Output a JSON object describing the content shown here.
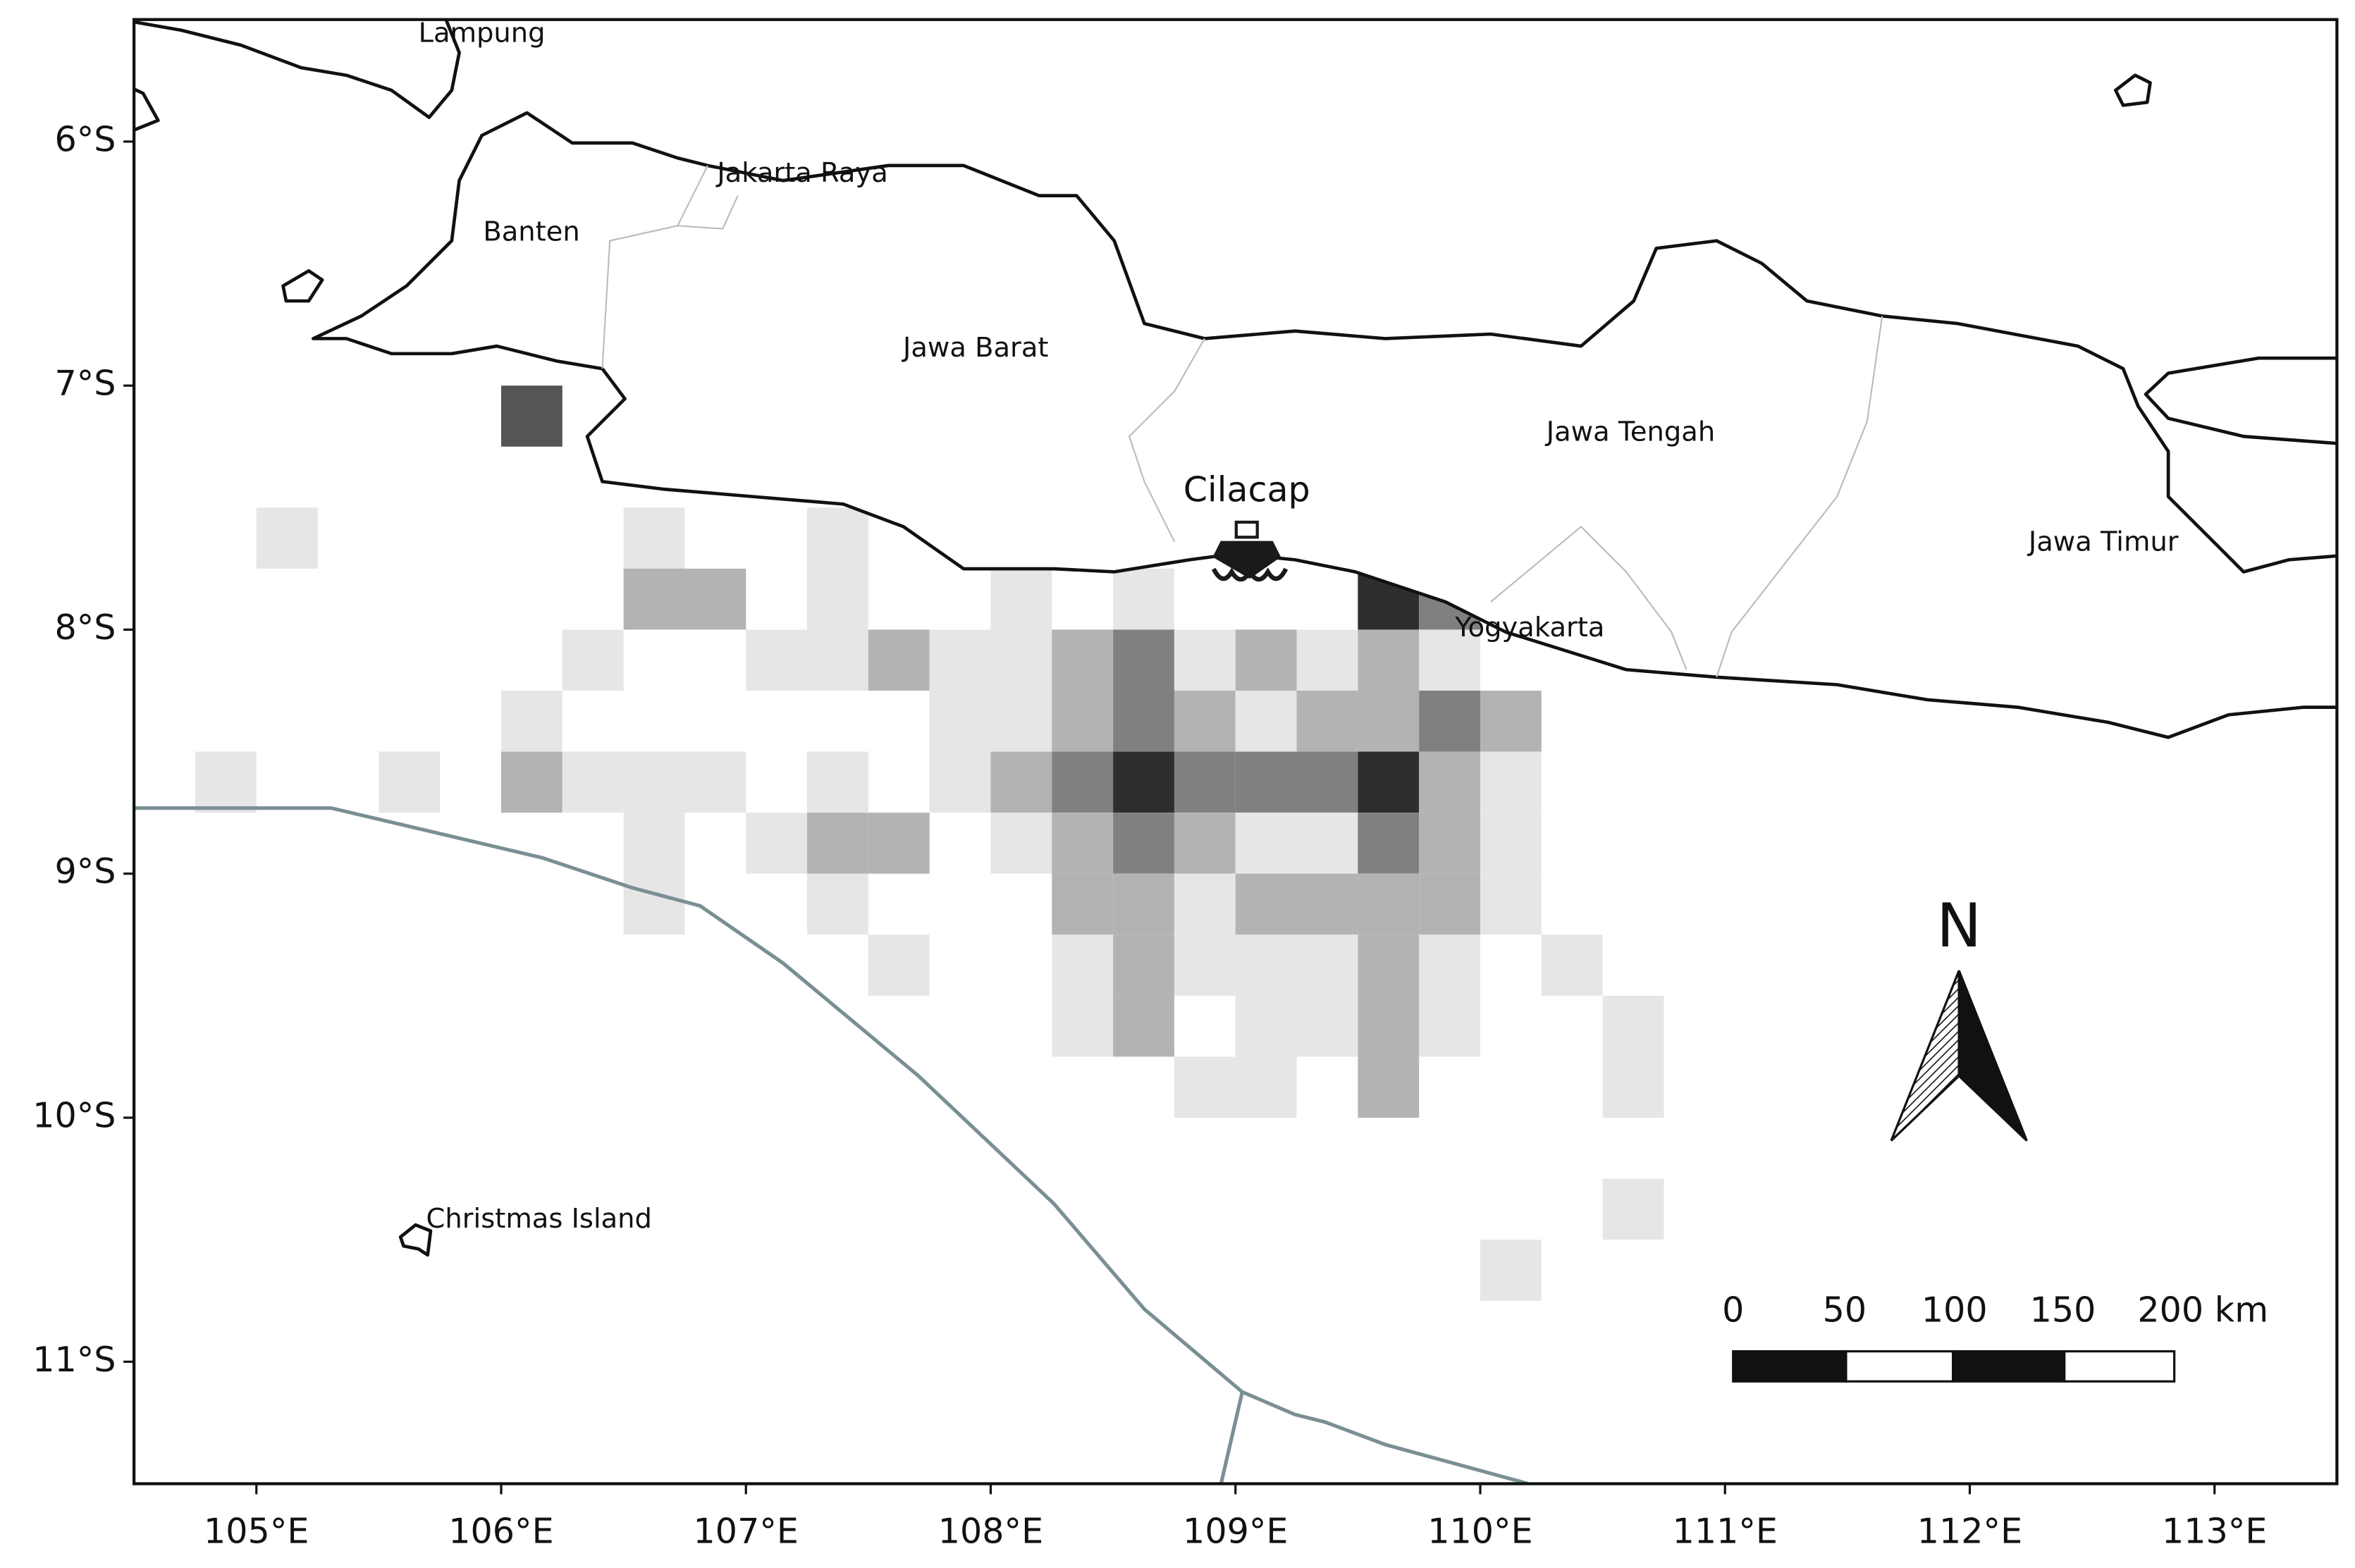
{
  "map": {
    "xlim": [
      104.5,
      113.5
    ],
    "xticks": [
      {
        "value": 105,
        "label": "105°E"
      },
      {
        "value": 106,
        "label": "106°E"
      },
      {
        "value": 107,
        "label": "107°E"
      },
      {
        "value": 108,
        "label": "108°E"
      },
      {
        "value": 109,
        "label": "109°E"
      },
      {
        "value": 110,
        "label": "110°E"
      },
      {
        "value": 111,
        "label": "111°E"
      },
      {
        "value": 112,
        "label": "112°E"
      },
      {
        "value": 113,
        "label": "113°E"
      }
    ],
    "ylim": [
      -11.5,
      -5.5
    ],
    "yticks": [
      {
        "value": -6,
        "label": "6°S"
      },
      {
        "value": -7,
        "label": "7°S"
      },
      {
        "value": -8,
        "label": "8°S"
      },
      {
        "value": -9,
        "label": "9°S"
      },
      {
        "value": -10,
        "label": "10°S"
      },
      {
        "value": -11,
        "label": "11°S"
      }
    ],
    "labels": {
      "lampung": "Lampung",
      "jakarta": "Jakarta Raya",
      "banten": "Banten",
      "jawa_barat": "Jawa Barat",
      "jawa_tengah": "Jawa Tengah",
      "jawa_timur": "Jawa Timur",
      "yogyakarta": "Yogyakarta",
      "christmas": "Christmas Island"
    },
    "port": "Cilacap",
    "north": "N",
    "scale_bar": [
      "0",
      "50",
      "100",
      "150",
      "200 km"
    ],
    "cell_colors": [
      "#e6e6e6",
      "#b3b3b3",
      "#808080",
      "#555555",
      "#2e2e2e"
    ],
    "cells": [
      [
        106.0,
        -7.0,
        4
      ],
      [
        105.0,
        -7.5,
        1
      ],
      [
        106.5,
        -7.5,
        1
      ],
      [
        107.25,
        -7.5,
        1
      ],
      [
        106.5,
        -7.75,
        2
      ],
      [
        106.75,
        -7.75,
        2
      ],
      [
        107.25,
        -7.75,
        1
      ],
      [
        108.0,
        -7.75,
        1
      ],
      [
        108.5,
        -7.75,
        1
      ],
      [
        109.5,
        -7.75,
        5
      ],
      [
        109.75,
        -7.75,
        3
      ],
      [
        106.25,
        -8.0,
        1
      ],
      [
        107.0,
        -8.0,
        1
      ],
      [
        107.25,
        -8.0,
        1
      ],
      [
        107.5,
        -8.0,
        2
      ],
      [
        107.75,
        -8.0,
        1
      ],
      [
        108.0,
        -8.0,
        1
      ],
      [
        108.25,
        -8.0,
        2
      ],
      [
        108.5,
        -8.0,
        3
      ],
      [
        108.75,
        -8.0,
        1
      ],
      [
        109.0,
        -8.0,
        2
      ],
      [
        109.25,
        -8.0,
        1
      ],
      [
        109.5,
        -8.0,
        2
      ],
      [
        109.75,
        -8.0,
        1
      ],
      [
        106.0,
        -8.25,
        1
      ],
      [
        107.75,
        -8.25,
        1
      ],
      [
        108.0,
        -8.25,
        1
      ],
      [
        108.25,
        -8.25,
        2
      ],
      [
        108.5,
        -8.25,
        3
      ],
      [
        108.75,
        -8.25,
        2
      ],
      [
        109.0,
        -8.25,
        1
      ],
      [
        109.25,
        -8.25,
        2
      ],
      [
        109.5,
        -8.25,
        2
      ],
      [
        109.75,
        -8.25,
        3
      ],
      [
        110.0,
        -8.25,
        2
      ],
      [
        104.75,
        -8.5,
        1
      ],
      [
        105.5,
        -8.5,
        1
      ],
      [
        106.0,
        -8.5,
        2
      ],
      [
        106.25,
        -8.5,
        1
      ],
      [
        106.5,
        -8.5,
        1
      ],
      [
        106.75,
        -8.5,
        1
      ],
      [
        107.25,
        -8.5,
        1
      ],
      [
        107.75,
        -8.5,
        1
      ],
      [
        108.0,
        -8.5,
        2
      ],
      [
        108.25,
        -8.5,
        3
      ],
      [
        108.5,
        -8.5,
        5
      ],
      [
        108.75,
        -8.5,
        3
      ],
      [
        109.0,
        -8.5,
        3
      ],
      [
        109.25,
        -8.5,
        3
      ],
      [
        109.5,
        -8.5,
        5
      ],
      [
        109.75,
        -8.5,
        2
      ],
      [
        110.0,
        -8.5,
        1
      ],
      [
        106.5,
        -8.75,
        1
      ],
      [
        107.0,
        -8.75,
        1
      ],
      [
        107.25,
        -8.75,
        2
      ],
      [
        107.5,
        -8.75,
        2
      ],
      [
        108.0,
        -8.75,
        1
      ],
      [
        108.25,
        -8.75,
        2
      ],
      [
        108.5,
        -8.75,
        3
      ],
      [
        108.75,
        -8.75,
        2
      ],
      [
        109.0,
        -8.75,
        1
      ],
      [
        109.25,
        -8.75,
        1
      ],
      [
        109.5,
        -8.75,
        3
      ],
      [
        109.75,
        -8.75,
        2
      ],
      [
        110.0,
        -8.75,
        1
      ],
      [
        106.5,
        -9.0,
        1
      ],
      [
        107.25,
        -9.0,
        1
      ],
      [
        108.25,
        -9.0,
        2
      ],
      [
        108.5,
        -9.0,
        2
      ],
      [
        108.75,
        -9.0,
        1
      ],
      [
        109.0,
        -9.0,
        2
      ],
      [
        109.25,
        -9.0,
        2
      ],
      [
        109.5,
        -9.0,
        2
      ],
      [
        109.75,
        -9.0,
        2
      ],
      [
        110.0,
        -9.0,
        1
      ],
      [
        107.5,
        -9.25,
        1
      ],
      [
        108.25,
        -9.25,
        1
      ],
      [
        108.5,
        -9.25,
        2
      ],
      [
        108.75,
        -9.25,
        1
      ],
      [
        109.0,
        -9.25,
        1
      ],
      [
        109.25,
        -9.25,
        1
      ],
      [
        109.5,
        -9.25,
        2
      ],
      [
        109.75,
        -9.25,
        1
      ],
      [
        110.25,
        -9.25,
        1
      ],
      [
        108.25,
        -9.5,
        1
      ],
      [
        108.5,
        -9.5,
        2
      ],
      [
        109.0,
        -9.5,
        1
      ],
      [
        109.25,
        -9.5,
        1
      ],
      [
        109.5,
        -9.5,
        2
      ],
      [
        109.75,
        -9.5,
        1
      ],
      [
        110.5,
        -9.5,
        1
      ],
      [
        108.75,
        -9.75,
        1
      ],
      [
        109.0,
        -9.75,
        1
      ],
      [
        109.5,
        -9.75,
        2
      ],
      [
        110.5,
        -9.75,
        1
      ],
      [
        110.5,
        -10.25,
        1
      ],
      [
        110.0,
        -10.5,
        1
      ]
    ]
  }
}
